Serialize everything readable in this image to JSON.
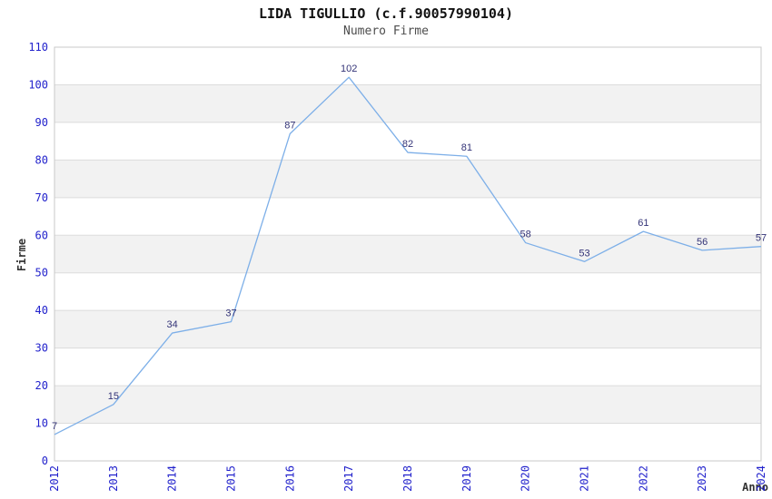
{
  "chart_data": {
    "type": "line",
    "title": "LIDA TIGULLIO (c.f.90057990104)",
    "subtitle": "Numero Firme",
    "xlabel": "Anno",
    "ylabel": "Firme",
    "categories": [
      "2012",
      "2013",
      "2014",
      "2015",
      "2016",
      "2017",
      "2018",
      "2019",
      "2020",
      "2021",
      "2022",
      "2023",
      "2024"
    ],
    "values": [
      7,
      15,
      34,
      37,
      87,
      102,
      82,
      81,
      58,
      53,
      61,
      56,
      57
    ],
    "ylim": [
      0,
      110
    ],
    "ytick_step": 10,
    "grid": "horizontal-only",
    "legend": "none",
    "plot_bands": "alternating-gray",
    "colors": {
      "line": "#7dafe8",
      "data_label": "#333377",
      "tick_label": "#2222cc",
      "band": "#f2f2f2",
      "grid_line": "#dcdcdc",
      "plot_border": "#c8c8c8",
      "title": "#111111",
      "subtitle": "#4d4d4d",
      "axis_label": "#333333",
      "background": "#ffffff"
    }
  }
}
